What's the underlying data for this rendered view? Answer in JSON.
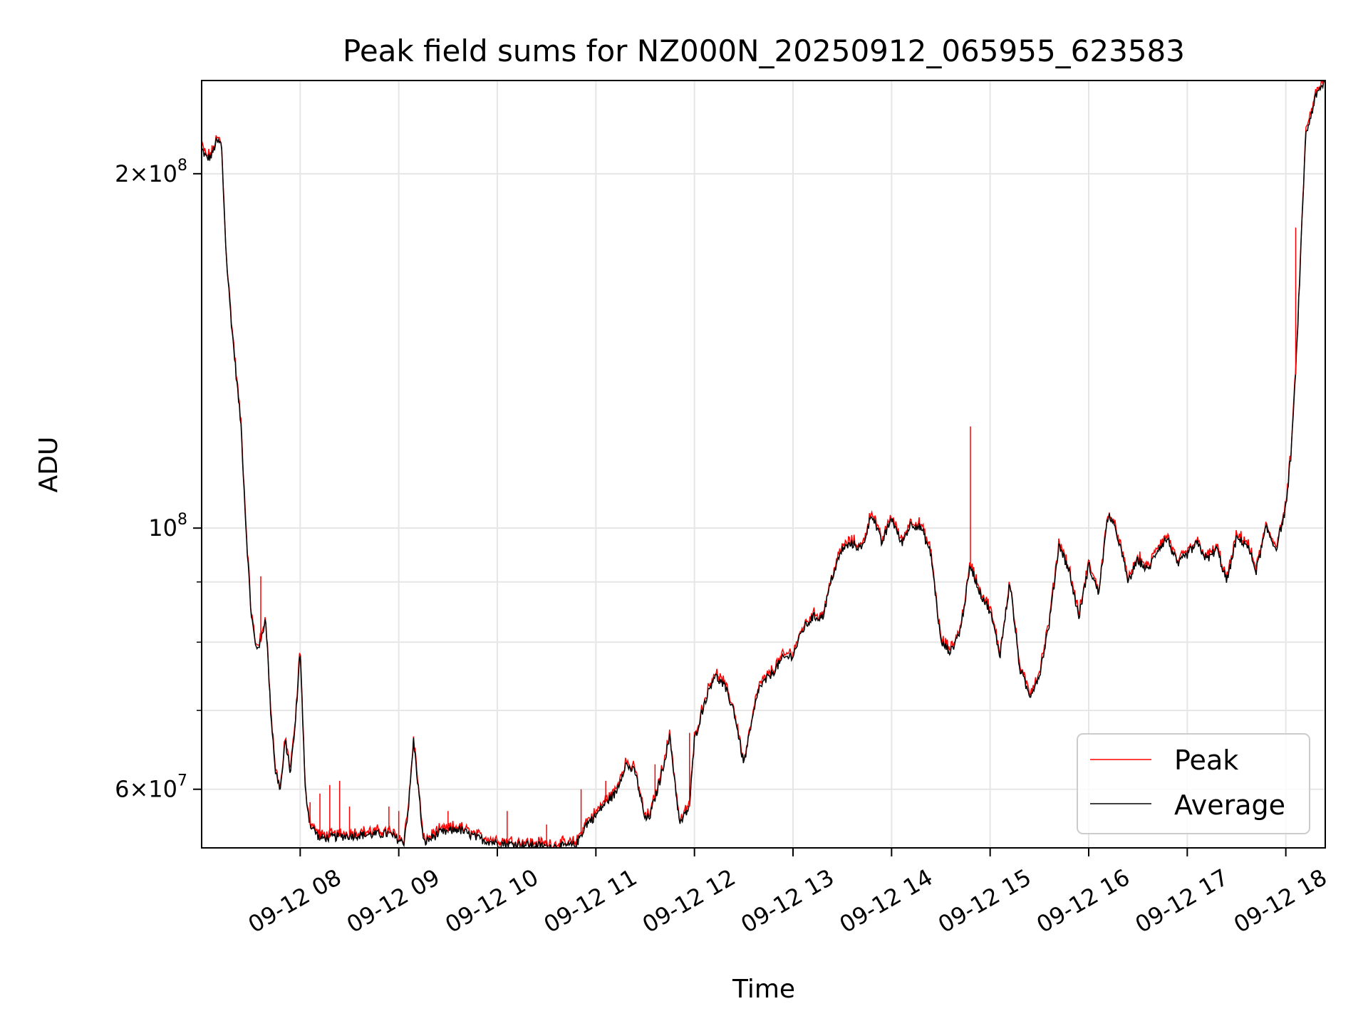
{
  "chart_data": {
    "type": "line",
    "title": "Peak field sums for NZ000N_20250912_065955_623583",
    "xlabel": "Time",
    "ylabel": "ADU",
    "y_scale": "log",
    "ylim": [
      53500000,
      240000000
    ],
    "xlim_hours": [
      7.0,
      18.4
    ],
    "x_ticks": [
      {
        "hour": 8,
        "label": "09-12 08"
      },
      {
        "hour": 9,
        "label": "09-12 09"
      },
      {
        "hour": 10,
        "label": "09-12 10"
      },
      {
        "hour": 11,
        "label": "09-12 11"
      },
      {
        "hour": 12,
        "label": "09-12 12"
      },
      {
        "hour": 13,
        "label": "09-12 13"
      },
      {
        "hour": 14,
        "label": "09-12 14"
      },
      {
        "hour": 15,
        "label": "09-12 15"
      },
      {
        "hour": 16,
        "label": "09-12 16"
      },
      {
        "hour": 17,
        "label": "09-12 17"
      },
      {
        "hour": 18,
        "label": "09-12 18"
      }
    ],
    "y_major_ticks": [
      {
        "value": 60000000,
        "base": "6×10",
        "exp": "7"
      },
      {
        "value": 100000000,
        "base": "10",
        "exp": "8"
      },
      {
        "value": 200000000,
        "base": "2×10",
        "exp": "8"
      }
    ],
    "y_minor_ticks": [
      70000000,
      80000000,
      90000000
    ],
    "grid": true,
    "legend_position": "lower-right",
    "series": [
      {
        "name": "Peak",
        "color": "#ff0000"
      },
      {
        "name": "Average",
        "color": "#000000"
      }
    ],
    "average_points": [
      [
        7.0,
        210000000
      ],
      [
        7.05,
        206000000
      ],
      [
        7.1,
        207000000
      ],
      [
        7.15,
        213000000
      ],
      [
        7.2,
        212000000
      ],
      [
        7.25,
        170000000
      ],
      [
        7.3,
        150000000
      ],
      [
        7.35,
        135000000
      ],
      [
        7.4,
        122000000
      ],
      [
        7.45,
        100000000
      ],
      [
        7.5,
        85000000
      ],
      [
        7.55,
        79000000
      ],
      [
        7.6,
        80000000
      ],
      [
        7.65,
        84000000
      ],
      [
        7.7,
        70000000
      ],
      [
        7.75,
        62000000
      ],
      [
        7.8,
        60000000
      ],
      [
        7.85,
        66000000
      ],
      [
        7.9,
        62000000
      ],
      [
        7.95,
        68000000
      ],
      [
        8.0,
        79000000
      ],
      [
        8.05,
        60000000
      ],
      [
        8.1,
        56000000
      ],
      [
        8.2,
        54500000
      ],
      [
        8.5,
        54800000
      ],
      [
        8.9,
        55000000
      ],
      [
        9.05,
        54000000
      ],
      [
        9.1,
        58000000
      ],
      [
        9.15,
        66000000
      ],
      [
        9.2,
        60000000
      ],
      [
        9.25,
        54000000
      ],
      [
        9.4,
        55000000
      ],
      [
        9.6,
        55500000
      ],
      [
        9.8,
        54500000
      ],
      [
        10.0,
        54000000
      ],
      [
        10.3,
        53800000
      ],
      [
        10.6,
        53600000
      ],
      [
        10.8,
        53800000
      ],
      [
        10.9,
        56000000
      ],
      [
        11.0,
        57000000
      ],
      [
        11.1,
        58500000
      ],
      [
        11.2,
        59500000
      ],
      [
        11.3,
        63000000
      ],
      [
        11.4,
        62000000
      ],
      [
        11.5,
        56500000
      ],
      [
        11.55,
        57000000
      ],
      [
        11.65,
        61000000
      ],
      [
        11.75,
        66500000
      ],
      [
        11.85,
        56000000
      ],
      [
        11.95,
        58000000
      ],
      [
        12.0,
        66000000
      ],
      [
        12.1,
        71000000
      ],
      [
        12.2,
        75000000
      ],
      [
        12.3,
        73500000
      ],
      [
        12.4,
        70000000
      ],
      [
        12.5,
        63000000
      ],
      [
        12.65,
        73000000
      ],
      [
        12.8,
        75500000
      ],
      [
        12.9,
        77500000
      ],
      [
        13.0,
        78000000
      ],
      [
        13.1,
        82000000
      ],
      [
        13.2,
        84000000
      ],
      [
        13.3,
        84000000
      ],
      [
        13.4,
        91000000
      ],
      [
        13.5,
        96000000
      ],
      [
        13.6,
        97000000
      ],
      [
        13.7,
        96000000
      ],
      [
        13.8,
        103000000
      ],
      [
        13.9,
        97000000
      ],
      [
        14.0,
        102000000
      ],
      [
        14.1,
        97000000
      ],
      [
        14.2,
        101000000
      ],
      [
        14.3,
        100000000
      ],
      [
        14.4,
        95000000
      ],
      [
        14.5,
        80000000
      ],
      [
        14.6,
        78500000
      ],
      [
        14.7,
        82000000
      ],
      [
        14.8,
        93000000
      ],
      [
        14.9,
        88000000
      ],
      [
        15.0,
        85000000
      ],
      [
        15.1,
        78000000
      ],
      [
        15.2,
        90000000
      ],
      [
        15.3,
        76000000
      ],
      [
        15.4,
        72000000
      ],
      [
        15.5,
        75000000
      ],
      [
        15.6,
        83000000
      ],
      [
        15.7,
        97000000
      ],
      [
        15.8,
        92000000
      ],
      [
        15.9,
        84000000
      ],
      [
        16.0,
        93000000
      ],
      [
        16.1,
        88000000
      ],
      [
        16.2,
        103000000
      ],
      [
        16.3,
        98000000
      ],
      [
        16.4,
        90000000
      ],
      [
        16.5,
        94000000
      ],
      [
        16.6,
        92000000
      ],
      [
        16.7,
        96000000
      ],
      [
        16.8,
        98000000
      ],
      [
        16.9,
        93000000
      ],
      [
        17.0,
        95000000
      ],
      [
        17.1,
        97000000
      ],
      [
        17.2,
        94000000
      ],
      [
        17.3,
        96000000
      ],
      [
        17.4,
        90000000
      ],
      [
        17.5,
        98000000
      ],
      [
        17.6,
        97000000
      ],
      [
        17.7,
        92000000
      ],
      [
        17.8,
        100000000
      ],
      [
        17.9,
        96000000
      ],
      [
        18.0,
        104000000
      ],
      [
        18.05,
        115000000
      ],
      [
        18.1,
        135000000
      ],
      [
        18.15,
        170000000
      ],
      [
        18.2,
        215000000
      ],
      [
        18.3,
        232000000
      ],
      [
        18.4,
        240000000
      ]
    ],
    "peak_spikes": [
      [
        7.6,
        91000000
      ],
      [
        8.1,
        58500000
      ],
      [
        8.2,
        59500000
      ],
      [
        8.3,
        60500000
      ],
      [
        8.4,
        61000000
      ],
      [
        8.5,
        58000000
      ],
      [
        8.9,
        58000000
      ],
      [
        9.0,
        57500000
      ],
      [
        9.5,
        57500000
      ],
      [
        10.1,
        57500000
      ],
      [
        10.5,
        56000000
      ],
      [
        10.85,
        60000000
      ],
      [
        11.1,
        61000000
      ],
      [
        11.6,
        63000000
      ],
      [
        11.95,
        67000000
      ],
      [
        14.8,
        122000000
      ],
      [
        18.1,
        180000000
      ]
    ]
  }
}
